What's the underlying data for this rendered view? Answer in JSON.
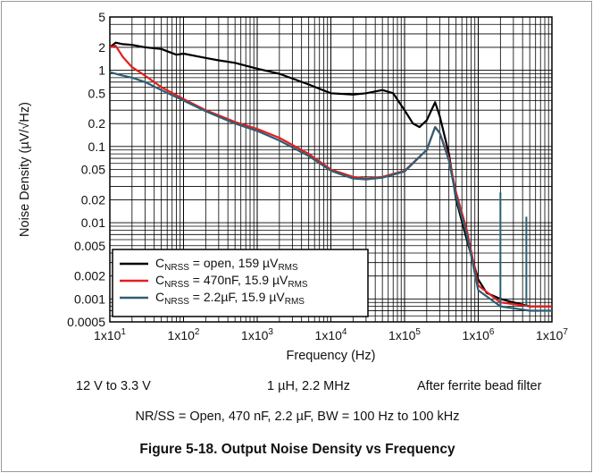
{
  "chart_data": {
    "type": "line",
    "xscale": "log",
    "yscale": "log",
    "xlim": [
      10,
      10000000
    ],
    "ylim": [
      0.0005,
      5
    ],
    "xlabel": "Frequency (Hz)",
    "ylabel": "Noise Density (µV/√Hz)",
    "x_ticks": [
      "1x10^1",
      "1x10^2",
      "1x10^3",
      "1x10^4",
      "1x10^5",
      "1x10^6",
      "1x10^7"
    ],
    "y_ticks": [
      "5",
      "2",
      "1",
      "0.5",
      "0.2",
      "0.1",
      "0.05",
      "0.02",
      "0.01",
      "0.005",
      "0.002",
      "0.001",
      "0.0005"
    ],
    "legend_position": "bottom-left",
    "grid": true,
    "series": [
      {
        "name": "C_NRSS = open, 159 µV_RMS",
        "color": "#000000",
        "x": [
          10,
          12,
          15,
          20,
          30,
          50,
          80,
          100,
          200,
          300,
          500,
          1000,
          2000,
          5000,
          10000,
          20000,
          30000,
          50000,
          70000,
          100000,
          130000,
          160000,
          200000,
          260000,
          300000,
          400000,
          500000,
          700000,
          1000000,
          1300000,
          2000000,
          3000000,
          5000000,
          10000000
        ],
        "y": [
          2.0,
          2.3,
          2.2,
          2.15,
          2.0,
          1.9,
          1.6,
          1.65,
          1.45,
          1.35,
          1.25,
          1.05,
          0.9,
          0.65,
          0.5,
          0.48,
          0.5,
          0.55,
          0.5,
          0.3,
          0.2,
          0.18,
          0.22,
          0.38,
          0.25,
          0.08,
          0.02,
          0.006,
          0.0018,
          0.0012,
          0.001,
          0.0009,
          0.0008,
          0.0008
        ]
      },
      {
        "name": "C_NRSS = 470nF, 15.9 µV_RMS",
        "color": "#e41e1e",
        "x": [
          10,
          12,
          15,
          20,
          30,
          50,
          100,
          200,
          500,
          1000,
          2000,
          5000,
          10000,
          20000,
          30000,
          50000,
          100000,
          200000,
          260000,
          300000,
          400000,
          500000,
          700000,
          1000000,
          2000000,
          5000000,
          10000000
        ],
        "y": [
          2.0,
          2.1,
          1.5,
          1.1,
          0.85,
          0.6,
          0.42,
          0.3,
          0.21,
          0.17,
          0.13,
          0.08,
          0.05,
          0.04,
          0.038,
          0.04,
          0.048,
          0.09,
          0.18,
          0.15,
          0.07,
          0.025,
          0.008,
          0.0015,
          0.0009,
          0.0008,
          0.0008
        ]
      },
      {
        "name": "C_NRSS = 2.2µF, 15.9 µV_RMS",
        "color": "#2b5f73",
        "x": [
          10,
          12,
          15,
          20,
          30,
          50,
          100,
          200,
          500,
          1000,
          2000,
          5000,
          10000,
          20000,
          30000,
          50000,
          100000,
          200000,
          260000,
          300000,
          400000,
          500000,
          700000,
          1000000,
          2000000,
          5000000,
          10000000
        ],
        "y": [
          0.95,
          0.9,
          0.85,
          0.8,
          0.7,
          0.55,
          0.4,
          0.29,
          0.2,
          0.16,
          0.12,
          0.075,
          0.048,
          0.038,
          0.037,
          0.039,
          0.047,
          0.09,
          0.18,
          0.15,
          0.065,
          0.022,
          0.007,
          0.0013,
          0.0008,
          0.0007,
          0.0007
        ]
      }
    ],
    "spurs": [
      {
        "x": 2000000,
        "y": 0.025
      },
      {
        "x": 4500000,
        "y": 0.012
      }
    ]
  },
  "legend": {
    "items": [
      {
        "pre": "C",
        "sub": "NRSS",
        "mid": " = open, 159 µV",
        "sub2": "RMS"
      },
      {
        "pre": "C",
        "sub": "NRSS",
        "mid": " = 470nF, 15.9 µV",
        "sub2": "RMS"
      },
      {
        "pre": "C",
        "sub": "NRSS",
        "mid": " = 2.2µF, 15.9 µV",
        "sub2": "RMS"
      }
    ]
  },
  "conditions": {
    "line1_left": "12 V to 3.3 V",
    "line1_mid": "1 µH, 2.2 MHz",
    "line1_right": "After ferrite bead filter",
    "line2": "NR/SS = Open, 470 nF, 2.2 µF, BW = 100 Hz to 100 kHz"
  },
  "caption": "Figure 5-18. Output Noise Density vs Frequency"
}
